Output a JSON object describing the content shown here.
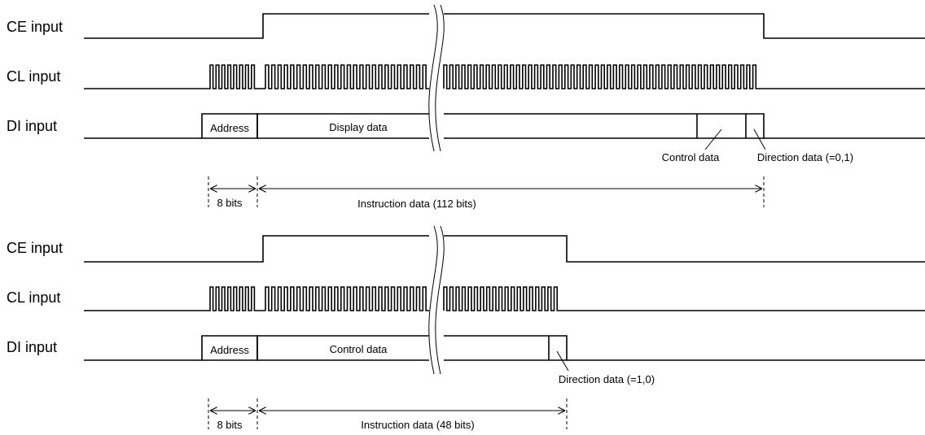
{
  "colors": {
    "line": "#000000",
    "background": "#ffffff"
  },
  "diagrams": [
    {
      "signals": {
        "ce": "CE input",
        "cl": "CL input",
        "di": "DI input"
      },
      "fields": {
        "address": "Address",
        "main": "Display data"
      },
      "callouts": {
        "control": "Control data",
        "direction": "Direction data (=0,1)"
      },
      "measure": {
        "address_bits": "8 bits",
        "instruction": "Instruction data (112 bits)"
      }
    },
    {
      "signals": {
        "ce": "CE input",
        "cl": "CL input",
        "di": "DI input"
      },
      "fields": {
        "address": "Address",
        "main": "Control data"
      },
      "callouts": {
        "direction": "Direction data (=1,0)"
      },
      "measure": {
        "address_bits": "8 bits",
        "instruction": "Instruction data (48 bits)"
      }
    }
  ]
}
